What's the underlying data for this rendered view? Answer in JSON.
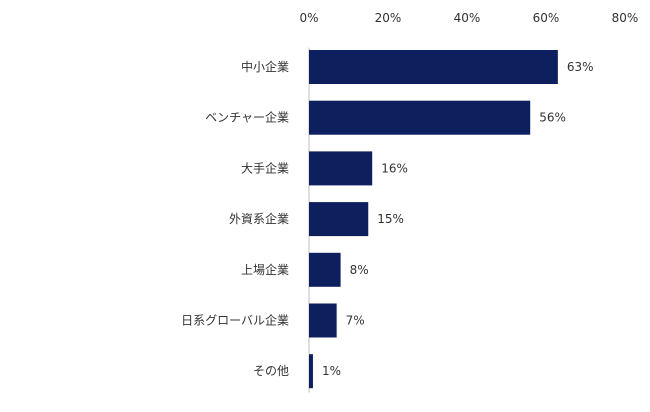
{
  "chart_data": {
    "type": "bar",
    "orientation": "horizontal",
    "categories": [
      "中小企業",
      "ベンチャー企業",
      "大手企業",
      "外資系企業",
      "上場企業",
      "日系グローバル企業",
      "その他"
    ],
    "values": [
      63,
      56,
      16,
      15,
      8,
      7,
      1
    ],
    "value_labels": [
      "63%",
      "56%",
      "16%",
      "15%",
      "8%",
      "7%",
      "1%"
    ],
    "x_ticks": [
      "0%",
      "20%",
      "40%",
      "60%",
      "80%"
    ],
    "x_tick_values": [
      0,
      20,
      40,
      60,
      80
    ],
    "xlim": [
      0,
      80
    ],
    "grid": false,
    "axis_position": "top",
    "bar_color": "#0d1f5c"
  }
}
